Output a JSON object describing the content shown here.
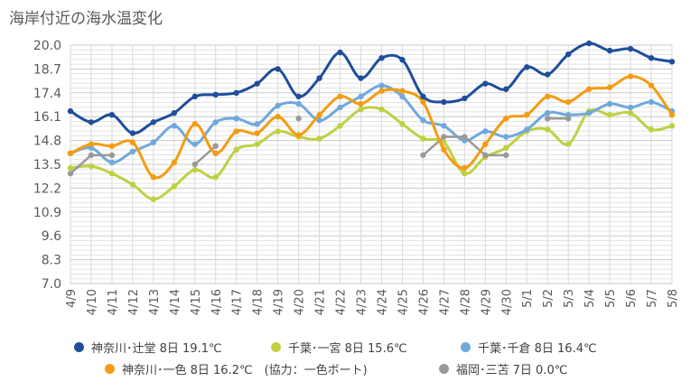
{
  "chart_data": {
    "type": "line",
    "title": "海岸付近の海水温変化",
    "categories": [
      "4/9",
      "4/10",
      "4/11",
      "4/12",
      "4/13",
      "4/14",
      "4/15",
      "4/16",
      "4/17",
      "4/18",
      "4/19",
      "4/20",
      "4/21",
      "4/22",
      "4/23",
      "4/24",
      "4/25",
      "4/26",
      "4/27",
      "4/28",
      "4/29",
      "4/30",
      "5/1",
      "5/2",
      "5/3",
      "5/4",
      "5/5",
      "5/6",
      "5/7",
      "5/8"
    ],
    "ylim": [
      7.0,
      20.0
    ],
    "yticks": [
      "20.0",
      "18.7",
      "17.4",
      "16.1",
      "14.8",
      "13.5",
      "12.2",
      "10.9",
      "9.6",
      "8.3",
      "7.0"
    ],
    "grid": true,
    "legend_position": "bottom",
    "series": [
      {
        "name": "神奈川･辻堂 8日 19.1℃",
        "color": "#1f4e9a",
        "smooth": true,
        "values": [
          16.4,
          15.8,
          16.2,
          15.2,
          15.8,
          16.3,
          17.2,
          17.3,
          17.4,
          17.9,
          18.7,
          17.2,
          18.2,
          19.6,
          18.2,
          19.3,
          19.2,
          17.2,
          16.9,
          17.1,
          17.9,
          17.6,
          18.8,
          18.4,
          19.5,
          20.1,
          19.7,
          19.8,
          19.3,
          19.1
        ]
      },
      {
        "name": "千葉･一宮 8日 15.6℃",
        "color": "#bfd043",
        "smooth": true,
        "values": [
          13.3,
          13.4,
          13.0,
          12.4,
          11.6,
          12.3,
          13.2,
          12.8,
          14.3,
          14.6,
          15.3,
          15.0,
          14.9,
          15.6,
          16.5,
          16.5,
          15.7,
          14.9,
          14.7,
          13.0,
          13.9,
          14.4,
          15.3,
          15.4,
          14.6,
          16.4,
          16.2,
          16.3,
          15.4,
          15.6
        ]
      },
      {
        "name": "千葉･千倉 8日 16.4℃",
        "color": "#6fa8dc",
        "smooth": true,
        "values": [
          14.1,
          14.4,
          13.6,
          14.2,
          14.7,
          15.6,
          14.6,
          15.8,
          16.0,
          15.7,
          16.7,
          16.8,
          15.9,
          16.6,
          17.2,
          17.8,
          17.2,
          15.9,
          15.6,
          14.8,
          15.3,
          15.0,
          15.4,
          16.3,
          16.2,
          16.3,
          16.8,
          16.6,
          16.9,
          16.4
        ]
      },
      {
        "name": "神奈川･一色 8日 16.2℃　(協力：一色ボート)",
        "color": "#f39c12",
        "smooth": true,
        "values": [
          14.1,
          14.6,
          14.5,
          14.7,
          12.8,
          13.6,
          15.7,
          14.1,
          15.3,
          15.2,
          16.1,
          15.1,
          16.2,
          17.2,
          16.8,
          17.5,
          17.5,
          16.9,
          14.3,
          13.3,
          14.6,
          16.0,
          16.2,
          17.2,
          16.9,
          17.6,
          17.7,
          18.3,
          17.8,
          16.2
        ]
      },
      {
        "name": "福岡･三苫 7日 0.0℃",
        "color": "#999999",
        "smooth": false,
        "values": [
          13.0,
          14.0,
          14.0,
          null,
          null,
          null,
          13.5,
          14.5,
          null,
          null,
          null,
          16.0,
          null,
          null,
          null,
          null,
          null,
          14.0,
          15.0,
          15.0,
          14.0,
          14.0,
          null,
          16.0,
          16.0,
          null,
          null,
          null,
          null,
          null
        ]
      }
    ]
  }
}
